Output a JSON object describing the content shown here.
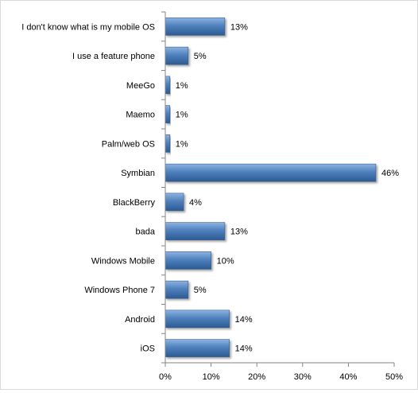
{
  "chart_data": {
    "type": "bar",
    "orientation": "horizontal",
    "categories": [
      "I don't know what is my mobile OS",
      "I use a feature phone",
      "MeeGo",
      "Maemo",
      "Palm/web OS",
      "Symbian",
      "BlackBerry",
      "bada",
      "Windows Mobile",
      "Windows Phone 7",
      "Android",
      "iOS"
    ],
    "values": [
      13,
      5,
      1,
      1,
      1,
      46,
      4,
      13,
      10,
      5,
      14,
      14
    ],
    "data_labels": [
      "13%",
      "5%",
      "1%",
      "1%",
      "1%",
      "46%",
      "4%",
      "13%",
      "10%",
      "5%",
      "14%",
      "14%"
    ],
    "xlim": [
      0,
      50
    ],
    "x_ticks": [
      0,
      10,
      20,
      30,
      40,
      50
    ],
    "x_tick_labels": [
      "0%",
      "10%",
      "20%",
      "30%",
      "40%",
      "50%"
    ],
    "title": "",
    "xlabel": "",
    "ylabel": "",
    "grid": false,
    "legend": "none",
    "bar_color": "#4f81bd"
  }
}
